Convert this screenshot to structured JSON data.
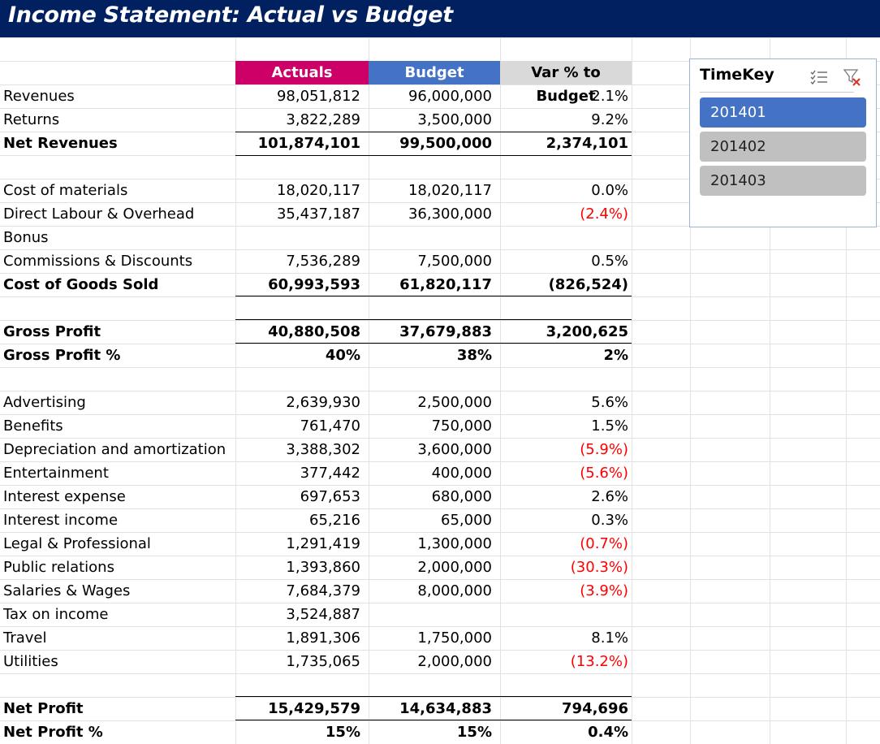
{
  "title": "Income Statement: Actual vs Budget",
  "headers": {
    "actuals": "Actuals",
    "budget": "Budget",
    "var": "Var % to Budget"
  },
  "rows": [
    {
      "label": "",
      "a": "",
      "b": "",
      "v": ""
    },
    {
      "label": "",
      "a": "",
      "b": "",
      "v": ""
    },
    {
      "label": "Revenues",
      "a": "98,051,812",
      "b": "96,000,000",
      "v": "2.1%"
    },
    {
      "label": "Returns",
      "a": "3,822,289",
      "b": "3,500,000",
      "v": "9.2%"
    },
    {
      "label": "Net Revenues",
      "a": "101,874,101",
      "b": "99,500,000",
      "v": "2,374,101"
    },
    {
      "label": "",
      "a": "",
      "b": "",
      "v": ""
    },
    {
      "label": "Cost of materials",
      "a": "18,020,117",
      "b": "18,020,117",
      "v": "0.0%"
    },
    {
      "label": "Direct Labour & Overhead",
      "a": "35,437,187",
      "b": "36,300,000",
      "v": "(2.4%)"
    },
    {
      "label": "Bonus",
      "a": "",
      "b": "",
      "v": ""
    },
    {
      "label": "Commissions & Discounts",
      "a": "7,536,289",
      "b": "7,500,000",
      "v": "0.5%"
    },
    {
      "label": "Cost of Goods Sold",
      "a": "60,993,593",
      "b": "61,820,117",
      "v": "(826,524)"
    },
    {
      "label": "",
      "a": "",
      "b": "",
      "v": ""
    },
    {
      "label": "Gross Profit",
      "a": "40,880,508",
      "b": "37,679,883",
      "v": "3,200,625"
    },
    {
      "label": "Gross Profit %",
      "a": "40%",
      "b": "38%",
      "v": "2%"
    },
    {
      "label": "",
      "a": "",
      "b": "",
      "v": ""
    },
    {
      "label": "Advertising",
      "a": "2,639,930",
      "b": "2,500,000",
      "v": "5.6%"
    },
    {
      "label": "Benefits",
      "a": "761,470",
      "b": "750,000",
      "v": "1.5%"
    },
    {
      "label": "Depreciation and amortization",
      "a": "3,388,302",
      "b": "3,600,000",
      "v": "(5.9%)"
    },
    {
      "label": "Entertainment",
      "a": "377,442",
      "b": "400,000",
      "v": "(5.6%)"
    },
    {
      "label": "Interest expense",
      "a": "697,653",
      "b": "680,000",
      "v": "2.6%"
    },
    {
      "label": "Interest income",
      "a": "65,216",
      "b": "65,000",
      "v": "0.3%"
    },
    {
      "label": "Legal & Professional",
      "a": "1,291,419",
      "b": "1,300,000",
      "v": "(0.7%)"
    },
    {
      "label": "Public relations",
      "a": "1,393,860",
      "b": "2,000,000",
      "v": "(30.3%)"
    },
    {
      "label": "Salaries & Wages",
      "a": "7,684,379",
      "b": "8,000,000",
      "v": "(3.9%)"
    },
    {
      "label": "Tax on income",
      "a": "3,524,887",
      "b": "",
      "v": ""
    },
    {
      "label": "Travel",
      "a": "1,891,306",
      "b": "1,750,000",
      "v": "8.1%"
    },
    {
      "label": "Utilities",
      "a": "1,735,065",
      "b": "2,000,000",
      "v": "(13.2%)"
    },
    {
      "label": "",
      "a": "",
      "b": "",
      "v": ""
    },
    {
      "label": "Net Profit",
      "a": "15,429,579",
      "b": "14,634,883",
      "v": "794,696"
    },
    {
      "label": "Net Profit %",
      "a": "15%",
      "b": "15%",
      "v": "0.4%"
    }
  ],
  "slicer": {
    "title": "TimeKey",
    "multiselect_icon": "multi-select-icon",
    "clear_filter_icon": "clear-filter-icon",
    "items": [
      {
        "label": "201401",
        "selected": true
      },
      {
        "label": "201402",
        "selected": false
      },
      {
        "label": "201403",
        "selected": false
      }
    ]
  },
  "colors": {
    "title_bg": "#002060",
    "actuals_header": "#cc0066",
    "budget_header": "#4472c4",
    "var_header": "#d9d9d9",
    "negative": "#ff0000",
    "slicer_selected": "#4472c4",
    "slicer_unselected": "#c0c0c0"
  }
}
